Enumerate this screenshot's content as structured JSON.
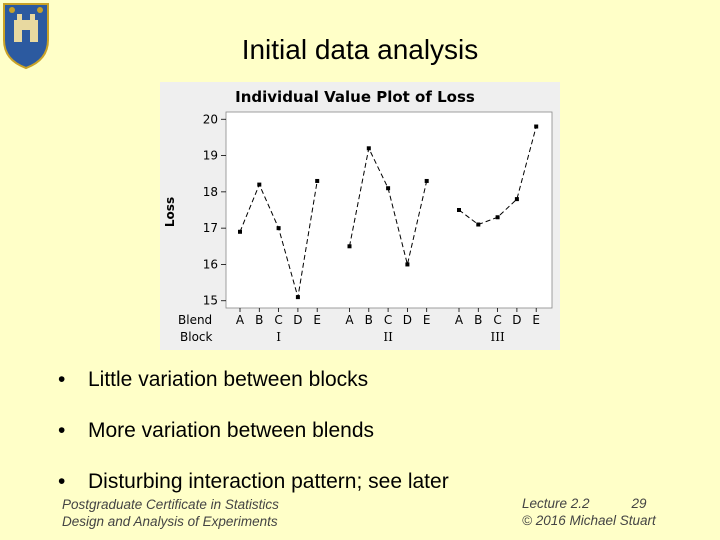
{
  "slide": {
    "title": "Initial data analysis",
    "bullets": [
      "Little variation between blocks",
      "More variation between blends",
      "Disturbing interaction pattern; see later"
    ],
    "footer_left": [
      "Postgraduate Certificate in Statistics",
      "Design and Analysis of Experiments"
    ],
    "footer_right": {
      "lecture": "Lecture 2.2",
      "page": "29",
      "copyright": "© 2016 Michael Stuart"
    },
    "crest_icon": "university-crest-icon"
  },
  "chart_data": {
    "type": "line",
    "title": "Individual Value Plot of Loss",
    "ylabel": "Loss",
    "ylim": [
      14.8,
      20.2
    ],
    "yticks": [
      "15",
      "16",
      "17",
      "18",
      "19",
      "20"
    ],
    "row_labels": [
      "Blend",
      "Block"
    ],
    "blends": [
      "A",
      "B",
      "C",
      "D",
      "E"
    ],
    "blocks": [
      "I",
      "II",
      "III"
    ],
    "series": [
      {
        "block": "I",
        "values": [
          16.9,
          18.2,
          17.0,
          15.1,
          18.3
        ]
      },
      {
        "block": "II",
        "values": [
          16.5,
          19.2,
          18.1,
          16.0,
          18.3
        ]
      },
      {
        "block": "III",
        "values": [
          17.5,
          17.1,
          17.3,
          17.8,
          19.8
        ]
      }
    ],
    "colors": {
      "background": "#EFEFEF",
      "plot_area": "#FFFFFF",
      "line": "#000000"
    }
  }
}
